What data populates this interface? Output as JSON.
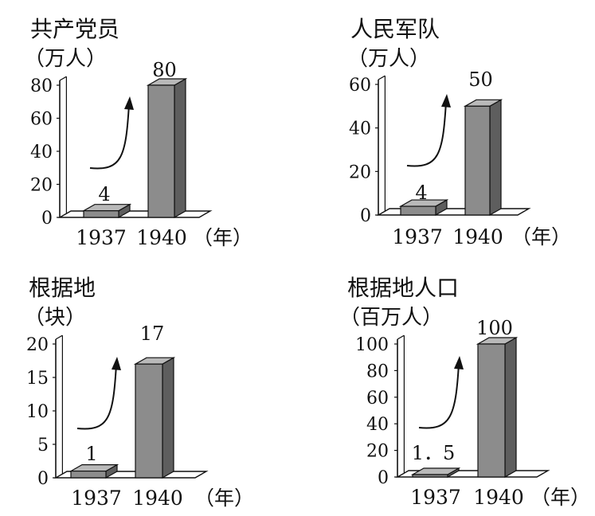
{
  "chart_data": [
    {
      "type": "bar",
      "title": "共产党员",
      "unit": "（万人）",
      "categories": [
        "1937",
        "1940"
      ],
      "values": [
        4,
        80
      ],
      "value_labels": [
        "4",
        "80"
      ],
      "ylim": [
        0,
        80
      ],
      "yticks": [
        "0",
        "20",
        "40",
        "60",
        "80"
      ],
      "x_unit": "（年）",
      "grid": false
    },
    {
      "type": "bar",
      "title": "人民军队",
      "unit": "（万人）",
      "categories": [
        "1937",
        "1940"
      ],
      "values": [
        4,
        50
      ],
      "value_labels": [
        "4",
        "50"
      ],
      "ylim": [
        0,
        60
      ],
      "yticks": [
        "0",
        "20",
        "40",
        "60"
      ],
      "x_unit": "（年）",
      "grid": false
    },
    {
      "type": "bar",
      "title": "根据地",
      "unit": "（块）",
      "categories": [
        "1937",
        "1940"
      ],
      "values": [
        1,
        17
      ],
      "value_labels": [
        "1",
        "17"
      ],
      "ylim": [
        0,
        20
      ],
      "yticks": [
        "0",
        "5",
        "10",
        "15",
        "20"
      ],
      "x_unit": "（年）",
      "grid": false
    },
    {
      "type": "bar",
      "title": "根据地人口",
      "unit": "（百万人）",
      "categories": [
        "1937",
        "1940"
      ],
      "values": [
        1.5,
        100
      ],
      "value_labels": [
        "1．5",
        "100"
      ],
      "ylim": [
        0,
        100
      ],
      "yticks": [
        "0",
        "20",
        "40",
        "60",
        "80",
        "100"
      ],
      "x_unit": "（年）",
      "grid": false
    }
  ],
  "colors": {
    "bar_front": "#8c8c8c",
    "bar_top": "#b9b9b9",
    "bar_side": "#5e5e5e",
    "axis": "#111111"
  }
}
